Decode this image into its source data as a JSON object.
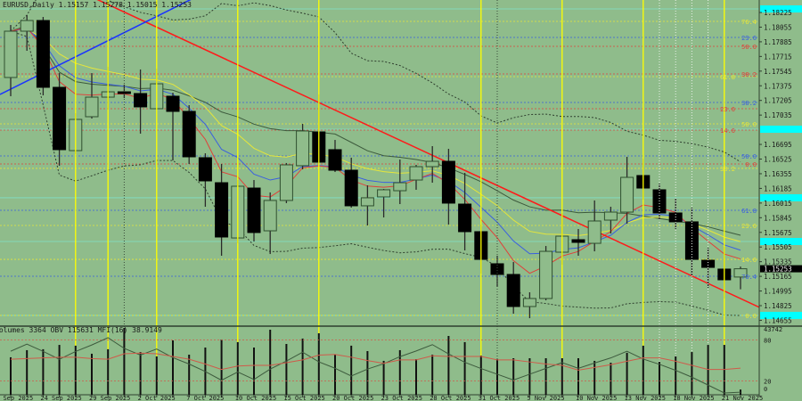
{
  "header": {
    "symbol": "EURUSD,Daily",
    "open": "1.15157",
    "high": "1.15278",
    "low": "1.15015",
    "close": "1.15253"
  },
  "indicator_header": {
    "text": "Volumes 3364 OBV 115631 MFI(16) 38.9149"
  },
  "colors": {
    "background": "#8fbc8b",
    "bear": "#000000",
    "bull_outline": "#2f4f2f",
    "ema_fast": "#e0403a",
    "ema_mid": "#3a5fe0",
    "ema_slow": "#e6e63a",
    "sma": "#3d5a3d",
    "trend_red": "#ff1a1a",
    "trend_blue": "#1a33ff",
    "vertical_yellow": "#ffff00",
    "cyan": "#00ffff",
    "mfi": "#d05a4a",
    "obv": "#3d5a3d"
  },
  "chart_data": [
    {
      "type": "candlestick",
      "symbol": "EURUSD",
      "timeframe": "Daily",
      "ylim": [
        1.1457,
        1.1837
      ],
      "price_ticks": [
        "1.18225",
        "1.18055",
        "1.17885",
        "1.17715",
        "1.17545",
        "1.17375",
        "1.17205",
        "1.17035",
        "1.16695",
        "1.16525",
        "1.16355",
        "1.16185",
        "1.16015",
        "1.15845",
        "1.15675",
        "1.15505",
        "1.15335",
        "1.15165",
        "1.14995",
        "1.14825",
        "1.14655"
      ],
      "current_price": "1.15253",
      "date_labels": [
        "19 Sep 2025",
        "24 Sep 2025",
        "29 Sep 2025",
        "2 Oct 2025",
        "7 Oct 2025",
        "10 Oct 2025",
        "15 Oct 2025",
        "20 Oct 2025",
        "23 Oct 2025",
        "28 Oct 2025",
        "31 Oct 2025",
        "5 Nov 2025",
        "10 Nov 2025",
        "13 Nov 2025",
        "18 Nov 2025",
        "21 Nov 2025"
      ],
      "candles_columns": [
        "date",
        "open",
        "high",
        "low",
        "close"
      ],
      "candles": [
        [
          "22 Sep 2025",
          1.17471,
          1.1808,
          1.17254,
          1.18008
        ],
        [
          "23 Sep 2025",
          1.18008,
          1.18194,
          1.17781,
          1.18132
        ],
        [
          "24 Sep 2025",
          1.18132,
          1.18173,
          1.17264,
          1.17357
        ],
        [
          "25 Sep 2025",
          1.17357,
          1.17522,
          1.16448,
          1.16634
        ],
        [
          "26 Sep 2025",
          1.16623,
          1.17057,
          1.16582,
          1.16985
        ],
        [
          "29 Sep 2025",
          1.17016,
          1.17522,
          1.16995,
          1.17243
        ],
        [
          "30 Sep 2025",
          1.17243,
          1.17595,
          1.17099,
          1.17305
        ],
        [
          "1 Oct 2025",
          1.17305,
          1.17388,
          1.17233,
          1.17285
        ],
        [
          "2 Oct 2025",
          1.17285,
          1.17564,
          1.1682,
          1.1713
        ],
        [
          "3 Oct 2025",
          1.17109,
          1.17574,
          1.17099,
          1.17398
        ],
        [
          "6 Oct 2025",
          1.17254,
          1.17295,
          1.1651,
          1.17078
        ],
        [
          "7 Oct 2025",
          1.17078,
          1.1715,
          1.16468,
          1.16551
        ],
        [
          "8 Oct 2025",
          1.16541,
          1.16592,
          1.15972,
          1.16272
        ],
        [
          "9 Oct 2025",
          1.16251,
          1.16468,
          1.15404,
          1.15621
        ],
        [
          "10 Oct 2025",
          1.1561,
          1.16282,
          1.15548,
          1.1621
        ],
        [
          "13 Oct 2025",
          1.16189,
          1.16282,
          1.15569,
          1.15673
        ],
        [
          "14 Oct 2025",
          1.15693,
          1.16138,
          1.15424,
          1.16045
        ],
        [
          "15 Oct 2025",
          1.16045,
          1.16479,
          1.16014,
          1.16458
        ],
        [
          "16 Oct 2025",
          1.16448,
          1.16933,
          1.16406,
          1.16851
        ],
        [
          "17 Oct 2025",
          1.1684,
          1.17274,
          1.16479,
          1.16489
        ],
        [
          "20 Oct 2025",
          1.16634,
          1.16747,
          1.16375,
          1.16396
        ],
        [
          "21 Oct 2025",
          1.16396,
          1.16541,
          1.15962,
          1.15983
        ],
        [
          "22 Oct 2025",
          1.15983,
          1.1622,
          1.15755,
          1.16076
        ],
        [
          "23 Oct 2025",
          1.16086,
          1.16179,
          1.15848,
          1.16169
        ],
        [
          "24 Oct 2025",
          1.16158,
          1.1652,
          1.16003,
          1.16251
        ],
        [
          "27 Oct 2025",
          1.16282,
          1.16458,
          1.16169,
          1.16437
        ],
        [
          "28 Oct 2025",
          1.16437,
          1.16675,
          1.16251,
          1.16499
        ],
        [
          "29 Oct 2025",
          1.16499,
          1.16644,
          1.15766,
          1.16014
        ],
        [
          "30 Oct 2025",
          1.16003,
          1.16365,
          1.15466,
          1.15683
        ],
        [
          "31 Oct 2025",
          1.15683,
          1.15766,
          1.15197,
          1.15362
        ],
        [
          "3 Nov 2025",
          1.15311,
          1.15404,
          1.15042,
          1.15187
        ],
        [
          "4 Nov 2025",
          1.15187,
          1.15331,
          1.14732,
          1.14815
        ],
        [
          "5 Nov 2025",
          1.14815,
          1.1498,
          1.1468,
          1.14908
        ],
        [
          "6 Nov 2025",
          1.14908,
          1.15517,
          1.14887,
          1.15455
        ],
        [
          "7 Nov 2025",
          1.15445,
          1.159,
          1.153,
          1.15631
        ],
        [
          "10 Nov 2025",
          1.1559,
          1.15714,
          1.15404,
          1.15559
        ],
        [
          "11 Nov 2025",
          1.15548,
          1.16045,
          1.15455,
          1.15807
        ],
        [
          "12 Nov 2025",
          1.15817,
          1.15972,
          1.15662,
          1.1591
        ],
        [
          "13 Nov 2025",
          1.1591,
          1.16551,
          1.15776,
          1.16313
        ],
        [
          "14 Nov 2025",
          1.16334,
          1.1653,
          1.16055,
          1.16189
        ],
        [
          "17 Nov 2025",
          1.16169,
          1.16241,
          1.15817,
          1.159
        ],
        [
          "18 Nov 2025",
          1.159,
          1.16065,
          1.15714,
          1.15797
        ],
        [
          "19 Nov 2025",
          1.15797,
          1.15962,
          1.15176,
          1.15362
        ],
        [
          "20 Nov 2025",
          1.15352,
          1.15497,
          1.15032,
          1.15269
        ],
        [
          "21 Nov 2025",
          1.15249,
          1.15507,
          1.14908,
          1.15125
        ],
        [
          "24 Nov 2025",
          1.15157,
          1.15278,
          1.15015,
          1.15253
        ]
      ],
      "fib_levels": [
        {
          "label": "76.4",
          "price": 1.18122,
          "color": "#e6e63a"
        },
        {
          "label": "23.6",
          "price": 1.17936,
          "color": "#3a5fe0"
        },
        {
          "label": "50.0",
          "price": 1.17832,
          "color": "#e0403a"
        },
        {
          "label": "38.2",
          "price": 1.17512,
          "color": "#e0403a"
        },
        {
          "label": "61.8",
          "price": 1.17481,
          "color": "#e6e63a"
        },
        {
          "label": "38.2",
          "price": 1.17181,
          "color": "#3a5fe0"
        },
        {
          "label": "23.6",
          "price": 1.17109,
          "color": "#e0403a"
        },
        {
          "label": "50.0",
          "price": 1.16933,
          "color": "#e6e63a"
        },
        {
          "label": "14.6",
          "price": 1.16861,
          "color": "#e0403a"
        },
        {
          "label": "50.0",
          "price": 1.16561,
          "color": "#3a5fe0"
        },
        {
          "label": "0.0",
          "price": 1.16468,
          "color": "#e0403a"
        },
        {
          "label": "38.2",
          "price": 1.16417,
          "color": "#e6e63a"
        },
        {
          "label": "61.8",
          "price": 1.15931,
          "color": "#3a5fe0"
        },
        {
          "label": "23.6",
          "price": 1.15755,
          "color": "#e6e63a"
        },
        {
          "label": "14.6",
          "price": 1.15362,
          "color": "#e6e63a"
        },
        {
          "label": "76.4",
          "price": 1.15166,
          "color": "#3a5fe0"
        },
        {
          "label": "0.0",
          "price": 1.14712,
          "color": "#e6e63a"
        }
      ],
      "cyan_levels": [
        1.18266,
        1.16871,
        1.16076,
        1.15569,
        1.14712
      ],
      "trendlines": [
        {
          "color": "#ff1a1a",
          "from": [
            "29 Sep 2025",
            1.18405
          ],
          "to": [
            "21 Nov 2025",
            1.14995
          ]
        },
        {
          "color": "#1a33ff",
          "from": [
            "22 Sep 2025",
            1.17336
          ],
          "to": [
            "7 Oct 2025",
            1.18366
          ]
        }
      ],
      "vertical_lines_yellow": [
        "26 Sep 2025",
        "30 Sep 2025",
        "3 Oct 2025",
        "10 Oct 2025",
        "17 Oct 2025",
        "31 Oct 2025",
        "7 Nov 2025",
        "14 Nov 2025",
        "21 Nov 2025"
      ],
      "vertical_lines_dotted": [
        "1 Oct 2025",
        "3 Nov 2025"
      ],
      "vertical_lines_white_dotted": [
        "17 Nov 2025",
        "18 Nov 2025",
        "19 Nov 2025",
        "20 Nov 2025"
      ]
    },
    {
      "type": "bar+line",
      "series": [
        {
          "name": "Volumes",
          "values": [
            24200,
            28800,
            29400,
            32200,
            31700,
            26500,
            29400,
            43200,
            27600,
            24800,
            35100,
            25900,
            30500,
            35700,
            34000,
            30500,
            42000,
            32800,
            36300,
            39700,
            25900,
            31700,
            28200,
            21900,
            28800,
            23000,
            25900,
            38000,
            34000,
            25300,
            23000,
            23600,
            23600,
            23600,
            23600,
            23600,
            21900,
            20700,
            27100,
            31700,
            21300,
            24800,
            27600,
            32200,
            32200,
            3364
          ]
        },
        {
          "name": "OBV",
          "last": 115631
        },
        {
          "name": "MFI(16)",
          "values": [
            52,
            53,
            54,
            55,
            55,
            53,
            52,
            60,
            61,
            60,
            56,
            52,
            45,
            37,
            42,
            43,
            43,
            47,
            51,
            58,
            59,
            55,
            50,
            46,
            51,
            51,
            57,
            56,
            56,
            56,
            51,
            51,
            48,
            45,
            43,
            36,
            40,
            44,
            49,
            54,
            54,
            49,
            43,
            37,
            37,
            38.9149
          ]
        }
      ],
      "y_ticks": [
        "43742",
        "80",
        "20",
        "0"
      ],
      "mfi_levels": [
        80,
        20
      ]
    }
  ]
}
